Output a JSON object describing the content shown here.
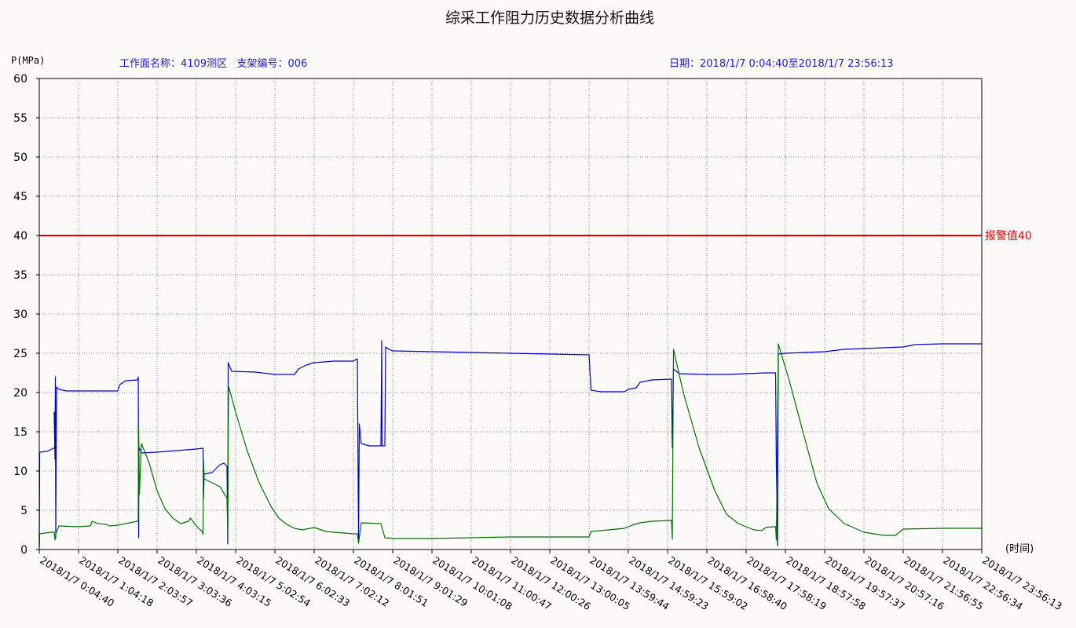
{
  "chart_data": {
    "type": "line",
    "title": "综采工作阻力历史数据分析曲线",
    "ylabel": "P(MPa)",
    "xlabel": "(时间)",
    "ylim": [
      0,
      60
    ],
    "yticks": [
      0,
      5,
      10,
      15,
      20,
      25,
      30,
      35,
      40,
      45,
      50,
      55,
      60
    ],
    "grid": true,
    "header": {
      "face": "工作面名称：4109测区",
      "support": "支架编号：006",
      "date_range": "日期：2018/1/7 0:04:40至2018/1/7 23:56:13"
    },
    "alarm": {
      "value": 40,
      "label": "报警值40",
      "color": "#e00000"
    },
    "xtick_labels": [
      "2018/1/7 0:04:40",
      "2018/1/7 1:04:18",
      "2018/1/7 2:03:57",
      "2018/1/7 3:03:36",
      "2018/1/7 4:03:15",
      "2018/1/7 5:02:54",
      "2018/1/7 6:02:33",
      "2018/1/7 7:02:12",
      "2018/1/7 8:01:51",
      "2018/1/7 9:01:29",
      "2018/1/7 10:01:08",
      "2018/1/7 11:00:47",
      "2018/1/7 12:00:26",
      "2018/1/7 13:00:05",
      "2018/1/7 13:59:44",
      "2018/1/7 14:59:23",
      "2018/1/7 15:59:02",
      "2018/1/7 16:58:40",
      "2018/1/7 17:58:19",
      "2018/1/7 18:57:58",
      "2018/1/7 19:57:37",
      "2018/1/7 20:57:16",
      "2018/1/7 21:56:55",
      "2018/1/7 22:56:34",
      "2018/1/7 23:56:13"
    ],
    "x_index_range": [
      0,
      24
    ],
    "series": [
      {
        "color": "#0000c8",
        "points": [
          [
            0.0,
            0.3
          ],
          [
            0.01,
            12.4
          ],
          [
            0.2,
            12.5
          ],
          [
            0.4,
            13.0
          ],
          [
            0.38,
            17.5
          ],
          [
            0.4,
            11.5
          ],
          [
            0.41,
            22.0
          ],
          [
            0.42,
            1.5
          ],
          [
            0.44,
            20.7
          ],
          [
            0.5,
            20.4
          ],
          [
            0.7,
            20.2
          ],
          [
            1.0,
            20.2
          ],
          [
            1.5,
            20.2
          ],
          [
            2.0,
            20.2
          ],
          [
            2.05,
            21.0
          ],
          [
            2.2,
            21.5
          ],
          [
            2.5,
            21.6
          ],
          [
            2.52,
            22.0
          ],
          [
            2.53,
            1.5
          ],
          [
            2.54,
            13.0
          ],
          [
            2.6,
            12.3
          ],
          [
            3.0,
            12.4
          ],
          [
            3.5,
            12.6
          ],
          [
            4.0,
            12.8
          ],
          [
            4.17,
            12.9
          ],
          [
            4.18,
            6.5
          ],
          [
            4.2,
            9.6
          ],
          [
            4.4,
            9.8
          ],
          [
            4.6,
            10.8
          ],
          [
            4.7,
            11.0
          ],
          [
            4.78,
            10.6
          ],
          [
            4.8,
            0.7
          ],
          [
            4.81,
            23.8
          ],
          [
            4.9,
            22.7
          ],
          [
            5.5,
            22.6
          ],
          [
            6.0,
            22.3
          ],
          [
            6.5,
            22.3
          ],
          [
            6.6,
            23.0
          ],
          [
            6.8,
            23.5
          ],
          [
            7.0,
            23.8
          ],
          [
            7.5,
            24.0
          ],
          [
            8.0,
            24.0
          ],
          [
            8.1,
            24.3
          ],
          [
            8.13,
            1.0
          ],
          [
            8.15,
            16.0
          ],
          [
            8.2,
            13.5
          ],
          [
            8.4,
            13.2
          ],
          [
            8.7,
            13.2
          ],
          [
            8.72,
            26.6
          ],
          [
            8.73,
            13.2
          ],
          [
            8.8,
            13.2
          ],
          [
            8.82,
            25.8
          ],
          [
            8.9,
            25.5
          ],
          [
            9.0,
            25.3
          ],
          [
            10.0,
            25.2
          ],
          [
            11.0,
            25.1
          ],
          [
            12.0,
            25.0
          ],
          [
            13.0,
            24.9
          ],
          [
            14.0,
            24.8
          ],
          [
            14.05,
            20.3
          ],
          [
            14.3,
            20.1
          ],
          [
            14.9,
            20.1
          ],
          [
            15.0,
            20.4
          ],
          [
            15.2,
            20.6
          ],
          [
            15.3,
            21.3
          ],
          [
            15.6,
            21.6
          ],
          [
            16.1,
            21.7
          ],
          [
            16.12,
            13.0
          ],
          [
            16.15,
            23.0
          ],
          [
            16.3,
            22.4
          ],
          [
            17.0,
            22.3
          ],
          [
            17.5,
            22.3
          ],
          [
            18.0,
            22.4
          ],
          [
            18.5,
            22.5
          ],
          [
            18.75,
            22.5
          ],
          [
            18.77,
            10.5
          ],
          [
            18.8,
            0.5
          ],
          [
            18.82,
            24.9
          ],
          [
            19.0,
            25.0
          ],
          [
            19.5,
            25.1
          ],
          [
            20.0,
            25.2
          ],
          [
            20.5,
            25.5
          ],
          [
            21.0,
            25.6
          ],
          [
            21.5,
            25.7
          ],
          [
            22.0,
            25.8
          ],
          [
            22.3,
            26.1
          ],
          [
            23.0,
            26.2
          ],
          [
            24.0,
            26.2
          ]
        ]
      },
      {
        "color": "#007000",
        "points": [
          [
            0.0,
            0.3
          ],
          [
            0.01,
            2.0
          ],
          [
            0.3,
            2.2
          ],
          [
            0.38,
            2.2
          ],
          [
            0.4,
            1.2
          ],
          [
            0.42,
            2.0
          ],
          [
            0.5,
            3.0
          ],
          [
            1.0,
            2.9
          ],
          [
            1.3,
            3.0
          ],
          [
            1.35,
            3.6
          ],
          [
            1.5,
            3.3
          ],
          [
            1.7,
            3.2
          ],
          [
            1.8,
            3.0
          ],
          [
            2.0,
            3.1
          ],
          [
            2.5,
            3.6
          ],
          [
            2.52,
            3.7
          ],
          [
            2.53,
            15.8
          ],
          [
            2.55,
            7.0
          ],
          [
            2.6,
            13.5
          ],
          [
            2.8,
            11.0
          ],
          [
            3.0,
            7.5
          ],
          [
            3.2,
            5.2
          ],
          [
            3.4,
            4.0
          ],
          [
            3.6,
            3.3
          ],
          [
            3.8,
            3.6
          ],
          [
            3.85,
            4.0
          ],
          [
            4.0,
            3.0
          ],
          [
            4.1,
            2.5
          ],
          [
            4.15,
            2.3
          ],
          [
            4.17,
            1.9
          ],
          [
            4.18,
            11.5
          ],
          [
            4.2,
            9.0
          ],
          [
            4.4,
            8.5
          ],
          [
            4.6,
            8.0
          ],
          [
            4.75,
            6.8
          ],
          [
            4.78,
            6.5
          ],
          [
            4.8,
            2.0
          ],
          [
            4.82,
            20.8
          ],
          [
            5.0,
            17.5
          ],
          [
            5.3,
            12.5
          ],
          [
            5.6,
            8.5
          ],
          [
            5.9,
            5.5
          ],
          [
            6.1,
            4.0
          ],
          [
            6.3,
            3.2
          ],
          [
            6.5,
            2.7
          ],
          [
            6.7,
            2.5
          ],
          [
            7.0,
            2.8
          ],
          [
            7.3,
            2.3
          ],
          [
            7.5,
            2.2
          ],
          [
            8.0,
            2.0
          ],
          [
            8.1,
            2.0
          ],
          [
            8.13,
            0.8
          ],
          [
            8.2,
            3.4
          ],
          [
            8.7,
            3.3
          ],
          [
            8.8,
            1.5
          ],
          [
            9.0,
            1.4
          ],
          [
            10.0,
            1.4
          ],
          [
            11.0,
            1.5
          ],
          [
            12.0,
            1.6
          ],
          [
            13.0,
            1.6
          ],
          [
            14.0,
            1.6
          ],
          [
            14.05,
            2.3
          ],
          [
            14.5,
            2.5
          ],
          [
            14.9,
            2.7
          ],
          [
            15.1,
            3.1
          ],
          [
            15.3,
            3.4
          ],
          [
            15.6,
            3.6
          ],
          [
            16.1,
            3.7
          ],
          [
            16.12,
            1.3
          ],
          [
            16.15,
            25.5
          ],
          [
            16.4,
            20.0
          ],
          [
            16.8,
            13.0
          ],
          [
            17.2,
            7.5
          ],
          [
            17.5,
            4.5
          ],
          [
            17.8,
            3.3
          ],
          [
            18.2,
            2.5
          ],
          [
            18.4,
            2.4
          ],
          [
            18.5,
            2.8
          ],
          [
            18.7,
            2.9
          ],
          [
            18.75,
            2.9
          ],
          [
            18.77,
            1.2
          ],
          [
            18.82,
            26.2
          ],
          [
            19.1,
            21.5
          ],
          [
            19.5,
            14.0
          ],
          [
            19.8,
            8.5
          ],
          [
            20.1,
            5.2
          ],
          [
            20.5,
            3.3
          ],
          [
            21.0,
            2.2
          ],
          [
            21.5,
            1.8
          ],
          [
            21.8,
            1.8
          ],
          [
            22.0,
            2.6
          ],
          [
            23.0,
            2.7
          ],
          [
            24.0,
            2.7
          ]
        ]
      }
    ]
  }
}
